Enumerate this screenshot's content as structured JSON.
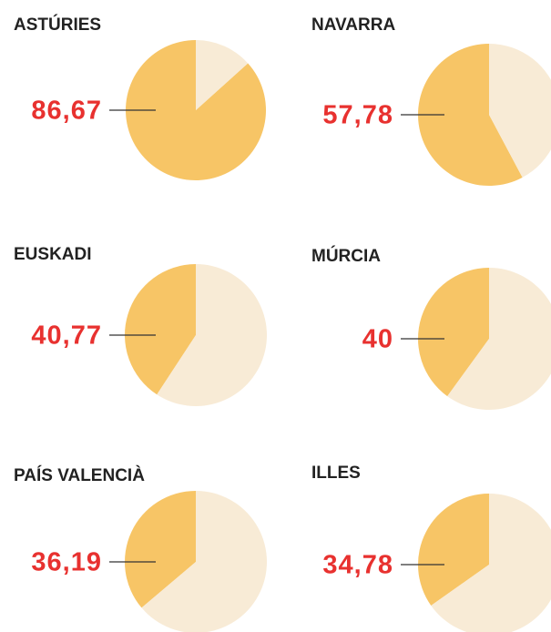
{
  "chart_data": [
    {
      "type": "pie",
      "title": "ASTÚRIES",
      "values": [
        86.67,
        13.33
      ],
      "value_labels": [
        "86,67",
        null
      ],
      "colors": [
        "#f7c566",
        "#f8ebd6"
      ]
    },
    {
      "type": "pie",
      "title": "NAVARRA",
      "values": [
        57.78,
        42.22
      ],
      "value_labels": [
        "57,78",
        null
      ],
      "colors": [
        "#f7c566",
        "#f8ebd6"
      ]
    },
    {
      "type": "pie",
      "title": "EUSKADI",
      "values": [
        40.77,
        59.23
      ],
      "value_labels": [
        "40,77",
        null
      ],
      "colors": [
        "#f7c566",
        "#f8ebd6"
      ]
    },
    {
      "type": "pie",
      "title": "MÚRCIA",
      "values": [
        40,
        60
      ],
      "colors": [
        "#f7c566",
        "#f8ebd6"
      ]
    },
    {
      "type": "pie",
      "title": "PAÍS VALENCIÀ",
      "values": [
        36.19,
        63.81
      ],
      "value_labels": [
        "36,19",
        null
      ],
      "colors": [
        "#f7c566",
        "#f8ebd6"
      ]
    },
    {
      "type": "pie",
      "title": "ILLES",
      "values": [
        34.78,
        65.22
      ],
      "value_labels": [
        "34,78",
        null
      ],
      "colors": [
        "#f7c566",
        "#f8ebd6"
      ]
    }
  ]
}
